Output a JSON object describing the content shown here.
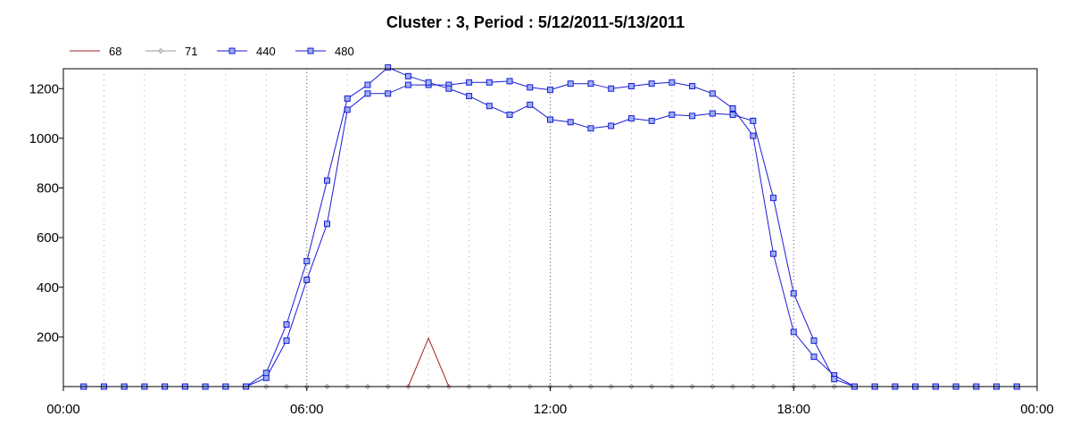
{
  "chart_data": {
    "type": "line",
    "title": "Cluster : 3, Period : 5/12/2011-5/13/2011",
    "xlabel": "",
    "ylabel": "",
    "x_ticks": [
      "00:00",
      "06:00",
      "12:00",
      "18:00",
      "00:00"
    ],
    "y_ticks": [
      200,
      400,
      600,
      800,
      1000,
      1200
    ],
    "xlim_hours": [
      0,
      24
    ],
    "ylim": [
      0,
      1280
    ],
    "grid": true,
    "legend_position": "top-left",
    "x_hours": [
      0.5,
      1.0,
      1.5,
      2.0,
      2.5,
      3.0,
      3.5,
      4.0,
      4.5,
      5.0,
      5.5,
      6.0,
      6.5,
      7.0,
      7.5,
      8.0,
      8.5,
      9.0,
      9.5,
      10.0,
      10.5,
      11.0,
      11.5,
      12.0,
      12.5,
      13.0,
      13.5,
      14.0,
      14.5,
      15.0,
      15.5,
      16.0,
      16.5,
      17.0,
      17.5,
      18.0,
      18.5,
      19.0,
      19.5,
      20.0,
      20.5,
      21.0,
      21.5,
      22.0,
      22.5,
      23.0,
      23.5
    ],
    "series": [
      {
        "name": "68",
        "color": "#aa2222",
        "marker": "none",
        "points": [
          [
            8.5,
            0
          ],
          [
            9.0,
            195
          ],
          [
            9.5,
            0
          ]
        ]
      },
      {
        "name": "71",
        "color": "#999999",
        "marker": "diamond",
        "values": [
          0,
          0,
          0,
          0,
          0,
          0,
          0,
          0,
          0,
          0,
          0,
          0,
          0,
          0,
          0,
          0,
          0,
          0,
          0,
          0,
          0,
          0,
          0,
          0,
          0,
          0,
          0,
          0,
          0,
          0,
          0,
          0,
          0,
          0,
          0,
          0,
          0,
          0,
          0,
          0,
          0,
          0,
          0,
          0,
          0,
          0,
          0
        ]
      },
      {
        "name": "440",
        "color": "#1a1ad6",
        "marker": "square",
        "values": [
          0,
          0,
          0,
          0,
          0,
          0,
          0,
          0,
          0,
          55,
          250,
          505,
          830,
          1160,
          1215,
          1285,
          1250,
          1225,
          1200,
          1170,
          1130,
          1095,
          1135,
          1075,
          1065,
          1040,
          1050,
          1080,
          1070,
          1095,
          1090,
          1100,
          1095,
          1070,
          760,
          375,
          185,
          30,
          0,
          0,
          0,
          0,
          0,
          0,
          0,
          0,
          0
        ]
      },
      {
        "name": "480",
        "color": "#1a1ad6",
        "marker": "square",
        "values": [
          0,
          0,
          0,
          0,
          0,
          0,
          0,
          0,
          0,
          35,
          185,
          430,
          655,
          1115,
          1180,
          1180,
          1215,
          1215,
          1215,
          1225,
          1225,
          1230,
          1205,
          1195,
          1220,
          1220,
          1200,
          1210,
          1220,
          1225,
          1210,
          1180,
          1120,
          1010,
          535,
          220,
          120,
          45,
          0,
          0,
          0,
          0,
          0,
          0,
          0,
          0,
          0
        ]
      }
    ]
  }
}
